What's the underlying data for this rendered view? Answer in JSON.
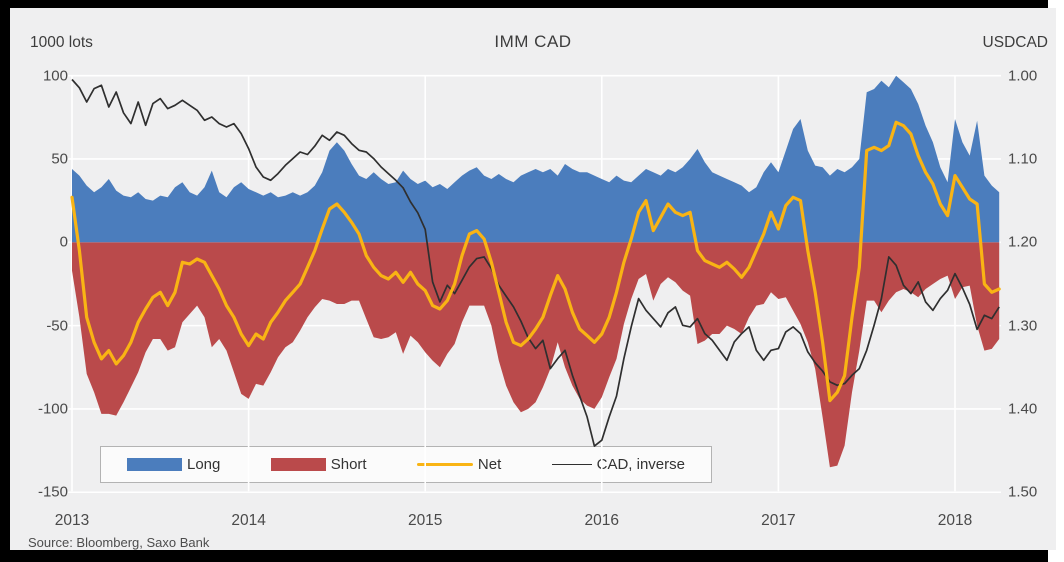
{
  "chart": {
    "title": "IMM CAD",
    "left_axis_title": "1000 lots",
    "right_axis_title": "USDCAD",
    "source": "Source: Bloomberg, Saxo Bank"
  },
  "colors": {
    "long": "#4b7dbd",
    "short": "#ba4a4b",
    "net": "#f9b414",
    "cad_inverse": "#2f2f2f",
    "panel_bg": "#efeff0",
    "gridline": "#ffffff"
  },
  "legend": [
    {
      "label": "Long",
      "swatch": "rect",
      "series": "long"
    },
    {
      "label": "Short",
      "swatch": "rect",
      "series": "short"
    },
    {
      "label": "Net",
      "swatch": "thick-line",
      "series": "net"
    },
    {
      "label": "CAD, inverse",
      "swatch": "thin-line",
      "series": "cad_inverse"
    }
  ],
  "chart_data": {
    "type": "combo",
    "title": "IMM CAD",
    "left_axis": {
      "label": "1000 lots",
      "ticks": [
        100,
        50,
        0,
        -50,
        -100,
        -150
      ],
      "range": [
        -150,
        100
      ]
    },
    "right_axis": {
      "label": "USDCAD",
      "ticks": [
        "1.00",
        "1.10",
        "1.20",
        "1.30",
        "1.40",
        "1.50"
      ],
      "range_inverted": [
        1.0,
        1.5
      ]
    },
    "x_axis": {
      "year_ticks": [
        2013,
        2014,
        2015,
        2016,
        2017,
        2018
      ],
      "start": 2013.0,
      "step_years": 0.0416667,
      "count": 127
    },
    "grid": true,
    "legend_position": "bottom-left-inside",
    "series": [
      {
        "name": "Long",
        "type": "area",
        "axis": "left",
        "values": [
          44,
          40,
          34,
          30,
          33,
          38,
          31,
          28,
          27,
          30,
          26,
          25,
          28,
          27,
          33,
          36,
          30,
          28,
          33,
          43,
          30,
          27,
          33,
          36,
          32,
          30,
          28,
          30,
          27,
          28,
          30,
          28,
          30,
          34,
          42,
          55,
          60,
          55,
          47,
          40,
          38,
          42,
          38,
          35,
          36,
          43,
          38,
          35,
          37,
          33,
          35,
          32,
          36,
          40,
          43,
          45,
          40,
          38,
          41,
          38,
          36,
          40,
          42,
          44,
          42,
          44,
          40,
          47,
          44,
          42,
          42,
          40,
          38,
          36,
          40,
          37,
          36,
          40,
          44,
          42,
          40,
          44,
          42,
          45,
          50,
          56,
          48,
          42,
          40,
          38,
          36,
          34,
          30,
          33,
          42,
          48,
          42,
          55,
          68,
          74,
          55,
          46,
          45,
          40,
          44,
          42,
          45,
          50,
          90,
          92,
          97,
          93,
          100,
          96,
          92,
          83,
          70,
          60,
          45,
          36,
          74,
          60,
          52,
          73,
          40,
          34,
          30
        ]
      },
      {
        "name": "Short",
        "type": "area",
        "axis": "left",
        "values": [
          -17,
          -45,
          -79,
          -90,
          -103,
          -103,
          -104,
          -96,
          -87,
          -78,
          -66,
          -58,
          -58,
          -65,
          -63,
          -48,
          -43,
          -38,
          -45,
          -63,
          -58,
          -65,
          -78,
          -91,
          -94,
          -85,
          -86,
          -78,
          -69,
          -63,
          -60,
          -53,
          -45,
          -39,
          -34,
          -35,
          -37,
          -37,
          -35,
          -35,
          -46,
          -57,
          -58,
          -57,
          -54,
          -67,
          -56,
          -60,
          -66,
          -71,
          -75,
          -67,
          -61,
          -48,
          -38,
          -38,
          -38,
          -50,
          -71,
          -86,
          -96,
          -102,
          -100,
          -96,
          -87,
          -76,
          -60,
          -75,
          -86,
          -94,
          -98,
          -100,
          -93,
          -81,
          -70,
          -49,
          -34,
          -22,
          -19,
          -35,
          -25,
          -21,
          -24,
          -29,
          -32,
          -61,
          -59,
          -55,
          -55,
          -50,
          -52,
          -55,
          -45,
          -38,
          -37,
          -30,
          -34,
          -33,
          -41,
          -49,
          -60,
          -76,
          -105,
          -135,
          -134,
          -122,
          -90,
          -65,
          -35,
          -35,
          -42,
          -35,
          -30,
          -28,
          -30,
          -33,
          -28,
          -25,
          -22,
          -20,
          -34,
          -27,
          -26,
          -50,
          -65,
          -64,
          -58
        ]
      },
      {
        "name": "Net",
        "type": "line",
        "axis": "left",
        "values": [
          27,
          -5,
          -45,
          -60,
          -70,
          -65,
          -73,
          -68,
          -60,
          -48,
          -40,
          -33,
          -30,
          -38,
          -30,
          -12,
          -13,
          -10,
          -12,
          -20,
          -28,
          -38,
          -45,
          -55,
          -62,
          -55,
          -58,
          -48,
          -42,
          -35,
          -30,
          -25,
          -15,
          -5,
          8,
          20,
          23,
          18,
          12,
          5,
          -8,
          -15,
          -20,
          -22,
          -18,
          -24,
          -18,
          -25,
          -29,
          -38,
          -40,
          -35,
          -25,
          -8,
          5,
          7,
          2,
          -12,
          -30,
          -48,
          -60,
          -62,
          -58,
          -52,
          -45,
          -32,
          -20,
          -28,
          -42,
          -52,
          -56,
          -60,
          -55,
          -45,
          -30,
          -12,
          2,
          18,
          25,
          7,
          15,
          23,
          18,
          16,
          18,
          -5,
          -11,
          -13,
          -15,
          -12,
          -16,
          -21,
          -15,
          -5,
          5,
          18,
          8,
          22,
          27,
          25,
          -5,
          -30,
          -60,
          -95,
          -90,
          -80,
          -45,
          -15,
          55,
          57,
          55,
          58,
          72,
          70,
          65,
          52,
          42,
          35,
          23,
          16,
          40,
          33,
          26,
          23,
          -25,
          -30,
          -28
        ]
      },
      {
        "name": "CAD, inverse",
        "type": "line",
        "axis": "right",
        "values": [
          1.005,
          1.015,
          1.032,
          1.016,
          1.012,
          1.038,
          1.02,
          1.045,
          1.058,
          1.032,
          1.06,
          1.034,
          1.028,
          1.04,
          1.036,
          1.03,
          1.036,
          1.042,
          1.054,
          1.05,
          1.058,
          1.062,
          1.058,
          1.07,
          1.088,
          1.11,
          1.122,
          1.126,
          1.118,
          1.108,
          1.1,
          1.092,
          1.095,
          1.085,
          1.072,
          1.078,
          1.068,
          1.072,
          1.082,
          1.09,
          1.092,
          1.1,
          1.11,
          1.118,
          1.126,
          1.135,
          1.152,
          1.165,
          1.185,
          1.248,
          1.272,
          1.252,
          1.262,
          1.246,
          1.23,
          1.22,
          1.218,
          1.232,
          1.252,
          1.265,
          1.278,
          1.295,
          1.315,
          1.328,
          1.318,
          1.352,
          1.34,
          1.33,
          1.36,
          1.385,
          1.41,
          1.445,
          1.438,
          1.41,
          1.385,
          1.34,
          1.302,
          1.268,
          1.282,
          1.292,
          1.302,
          1.285,
          1.278,
          1.3,
          1.302,
          1.292,
          1.31,
          1.318,
          1.33,
          1.342,
          1.32,
          1.31,
          1.302,
          1.33,
          1.342,
          1.33,
          1.328,
          1.308,
          1.302,
          1.31,
          1.332,
          1.345,
          1.355,
          1.368,
          1.372,
          1.37,
          1.36,
          1.352,
          1.33,
          1.3,
          1.268,
          1.218,
          1.228,
          1.252,
          1.262,
          1.248,
          1.272,
          1.282,
          1.268,
          1.258,
          1.238,
          1.255,
          1.275,
          1.305,
          1.288,
          1.292,
          1.278
        ]
      }
    ]
  }
}
